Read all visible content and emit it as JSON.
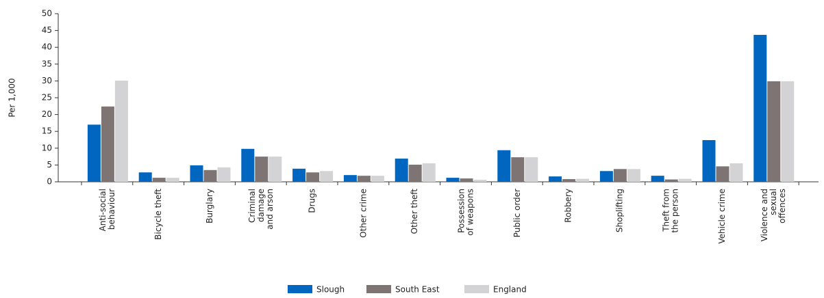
{
  "chart_data": {
    "type": "bar",
    "y_label": "Per 1,000",
    "categories": [
      "Anti-social\nbehaviour",
      "Bicycle theft",
      "Burglary",
      "Criminal\ndamage\nand arson",
      "Drugs",
      "Other crime",
      "Other theft",
      "Possession\nof weapons",
      "Public order",
      "Robbery",
      "Shoplifting",
      "Theft from\nthe person",
      "Vehicle crime",
      "Violence and\nsexual\noffences"
    ],
    "series": [
      {
        "name": "Slough",
        "color": "#0066bf",
        "values": [
          17,
          2.8,
          4.9,
          9.8,
          3.9,
          2.0,
          6.9,
          1.2,
          9.4,
          1.6,
          3.2,
          1.8,
          12.4,
          43.7
        ]
      },
      {
        "name": "South East",
        "color": "#7f7474",
        "values": [
          22.4,
          1.2,
          3.5,
          7.5,
          2.8,
          1.8,
          5.1,
          1.0,
          7.3,
          0.8,
          3.8,
          0.7,
          4.6,
          29.9
        ]
      },
      {
        "name": "England",
        "color": "#d3d3d6",
        "values": [
          30.1,
          1.2,
          4.3,
          7.5,
          3.2,
          1.8,
          5.5,
          0.6,
          7.3,
          0.9,
          3.8,
          0.9,
          5.5,
          29.9
        ]
      }
    ],
    "ylim": [
      0,
      50
    ],
    "yticks": [
      0,
      5,
      10,
      15,
      20,
      25,
      30,
      35,
      40,
      45,
      50
    ],
    "grid": false
  }
}
